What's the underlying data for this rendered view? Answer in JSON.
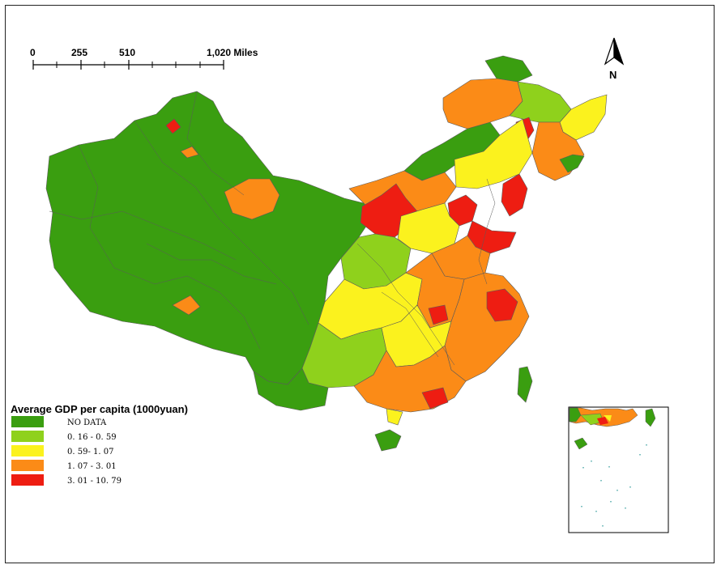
{
  "scale_bar": {
    "labels": [
      "0",
      "255",
      "510",
      "1,020 Miles"
    ]
  },
  "north_arrow": {
    "label": "N",
    "icon": "north-arrow-icon"
  },
  "legend": {
    "title": "Average GDP per capita (1000yuan)",
    "classes": [
      {
        "label": "NO DATA",
        "color": "#3a9e10"
      },
      {
        "label": "0. 16 - 0. 59",
        "color": "#8fd11c"
      },
      {
        "label": "0. 59- 1. 07",
        "color": "#fbf21e"
      },
      {
        "label": "1. 07 - 3. 01",
        "color": "#fb8b17"
      },
      {
        "label": "3. 01 - 10. 79",
        "color": "#ee1d12"
      }
    ]
  },
  "colors": {
    "boundary": "#5a5a5a",
    "background": "#ffffff"
  }
}
